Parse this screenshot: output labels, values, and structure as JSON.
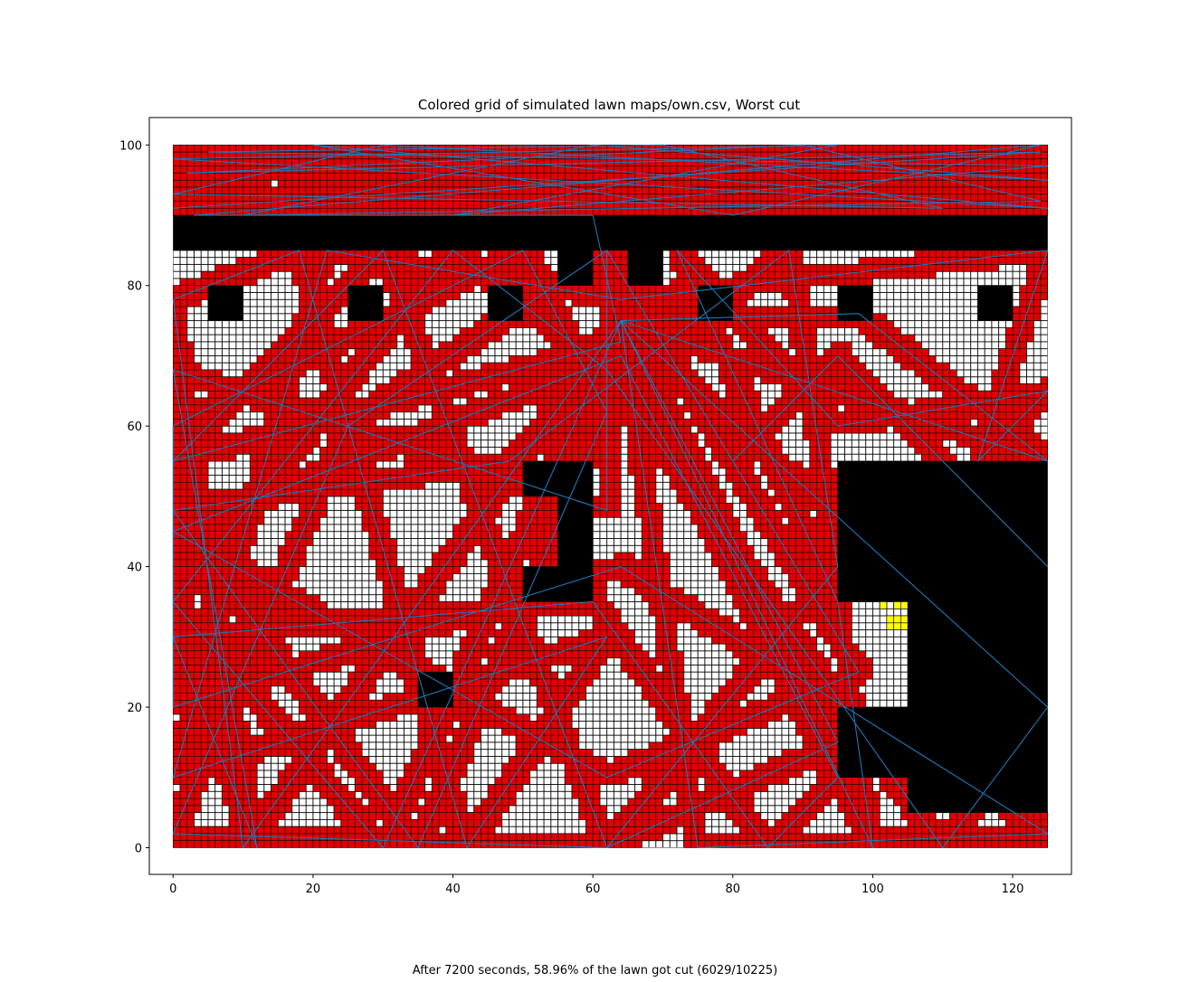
{
  "chart_data": {
    "type": "heatmap",
    "title": "Colored grid of simulated lawn maps/own.csv, Worst cut",
    "caption": "After 7200 seconds, 58.96% of the lawn got cut (6029/10225)",
    "xlabel": "",
    "ylabel": "",
    "xlim": [
      -3.4,
      128.4
    ],
    "ylim": [
      -3.8,
      103.9
    ],
    "x_ticks": [
      0,
      20,
      40,
      60,
      80,
      100,
      120
    ],
    "y_ticks": [
      0,
      20,
      40,
      60,
      80,
      100
    ],
    "grid": false,
    "legend": "none",
    "grid_extent": {
      "x": [
        0,
        125
      ],
      "y": [
        0,
        100
      ]
    },
    "cell_size": 1,
    "cells_total": 10225,
    "cells_cut": 6029,
    "cut_percent": 58.96,
    "duration_seconds": 7200,
    "colors": {
      "uncut": "#ffffff",
      "cut": "#e00000",
      "obstacle": "#000000",
      "highlight": "#ffff00",
      "path": "#1f77b4",
      "cell_edge": "#000000"
    },
    "obstacles": [
      {
        "x": [
          0,
          125
        ],
        "y": [
          85,
          90
        ]
      },
      {
        "x": [
          55,
          60
        ],
        "y": [
          80,
          85
        ]
      },
      {
        "x": [
          60,
          65
        ],
        "y": [
          85,
          90
        ],
        "note_gap": true
      },
      {
        "x": [
          65,
          70
        ],
        "y": [
          80,
          85
        ]
      },
      {
        "x": [
          5,
          10
        ],
        "y": [
          75,
          80
        ]
      },
      {
        "x": [
          25,
          30
        ],
        "y": [
          75,
          80
        ]
      },
      {
        "x": [
          45,
          50
        ],
        "y": [
          75,
          80
        ]
      },
      {
        "x": [
          75,
          80
        ],
        "y": [
          75,
          80
        ]
      },
      {
        "x": [
          95,
          100
        ],
        "y": [
          75,
          80
        ]
      },
      {
        "x": [
          115,
          120
        ],
        "y": [
          75,
          80
        ]
      },
      {
        "x": [
          50,
          60
        ],
        "y": [
          50,
          55
        ]
      },
      {
        "x": [
          55,
          60
        ],
        "y": [
          40,
          50
        ]
      },
      {
        "x": [
          50,
          60
        ],
        "y": [
          35,
          40
        ]
      },
      {
        "x": [
          35,
          40
        ],
        "y": [
          20,
          25
        ]
      },
      {
        "x": [
          95,
          125
        ],
        "y": [
          35,
          55
        ]
      },
      {
        "x": [
          105,
          125
        ],
        "y": [
          5,
          35
        ]
      },
      {
        "x": [
          95,
          105
        ],
        "y": [
          10,
          20
        ]
      }
    ],
    "highlight_cells": [
      {
        "x": 101,
        "y": 34
      },
      {
        "x": 103,
        "y": 34
      },
      {
        "x": 104,
        "y": 34
      },
      {
        "x": 102,
        "y": 31
      },
      {
        "x": 103,
        "y": 31
      },
      {
        "x": 104,
        "y": 31
      },
      {
        "x": 102,
        "y": 32
      },
      {
        "x": 103,
        "y": 32
      },
      {
        "x": 104,
        "y": 32
      }
    ],
    "path_waypoints": [
      [
        0,
        91
      ],
      [
        124,
        99
      ],
      [
        2,
        96
      ],
      [
        90,
        100
      ],
      [
        124,
        92
      ],
      [
        10,
        90
      ],
      [
        60,
        100
      ],
      [
        125,
        95
      ],
      [
        30,
        100
      ],
      [
        0,
        93
      ],
      [
        110,
        91
      ],
      [
        70,
        100
      ],
      [
        5,
        99
      ],
      [
        125,
        97
      ],
      [
        40,
        90
      ],
      [
        95,
        100
      ],
      [
        0,
        98
      ],
      [
        125,
        91
      ],
      [
        20,
        100
      ],
      [
        80,
        90
      ],
      [
        124,
        100
      ],
      [
        3,
        90
      ],
      [
        60,
        90
      ],
      [
        64,
        72
      ],
      [
        0,
        55
      ],
      [
        30,
        85
      ],
      [
        62,
        0
      ],
      [
        95,
        15
      ],
      [
        64,
        75
      ],
      [
        125,
        55
      ],
      [
        98,
        76
      ],
      [
        64,
        75
      ],
      [
        30,
        0
      ],
      [
        0,
        35
      ],
      [
        40,
        85
      ],
      [
        62,
        68
      ],
      [
        110,
        0
      ],
      [
        125,
        20
      ],
      [
        64,
        75
      ],
      [
        10,
        0
      ],
      [
        0,
        78
      ],
      [
        18,
        85
      ],
      [
        42,
        0
      ],
      [
        62,
        30
      ],
      [
        0,
        10
      ],
      [
        22,
        85
      ],
      [
        64,
        78
      ],
      [
        125,
        85
      ],
      [
        115,
        55
      ],
      [
        125,
        65
      ],
      [
        95,
        60
      ],
      [
        72,
        85
      ],
      [
        95,
        35
      ],
      [
        100,
        0
      ],
      [
        64,
        75
      ],
      [
        75,
        0
      ],
      [
        125,
        2
      ],
      [
        64,
        40
      ],
      [
        0,
        20
      ],
      [
        0,
        60
      ],
      [
        50,
        85
      ],
      [
        62,
        62
      ],
      [
        35,
        0
      ],
      [
        0,
        48
      ],
      [
        48,
        55
      ],
      [
        88,
        85
      ],
      [
        95,
        40
      ],
      [
        62,
        0
      ],
      [
        0,
        2
      ],
      [
        25,
        60
      ],
      [
        62,
        85
      ],
      [
        62,
        48
      ],
      [
        0,
        68
      ],
      [
        12,
        0
      ],
      [
        0,
        30
      ],
      [
        60,
        35
      ],
      [
        85,
        0
      ],
      [
        95,
        10
      ],
      [
        64,
        70
      ],
      [
        0,
        45
      ],
      [
        62,
        10
      ],
      [
        98,
        25
      ],
      [
        62,
        85
      ],
      [
        80,
        55
      ],
      [
        95,
        70
      ],
      [
        125,
        40
      ]
    ]
  }
}
